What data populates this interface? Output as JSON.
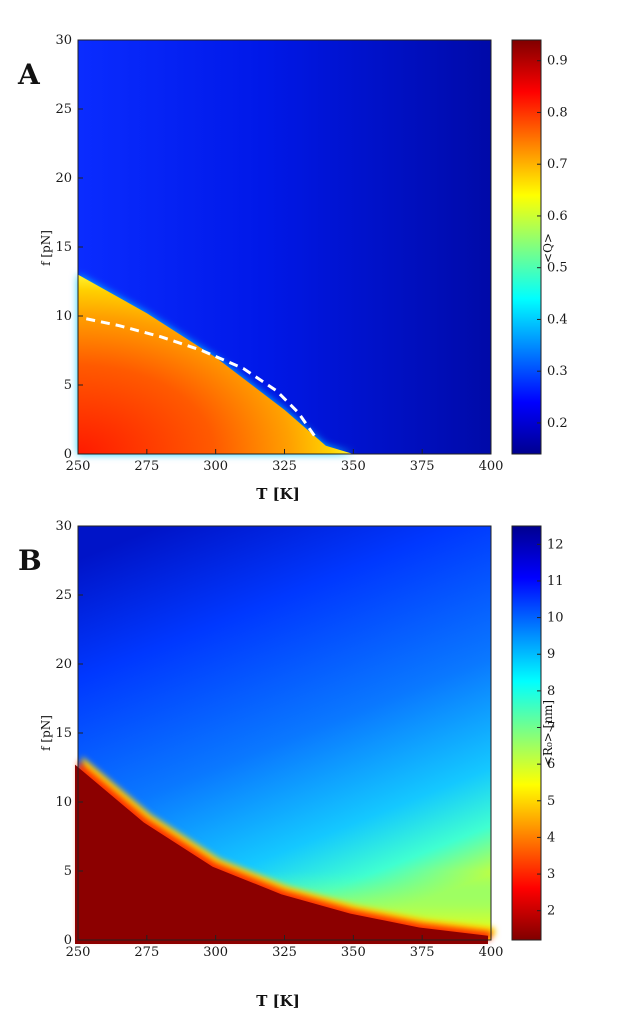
{
  "colors": {
    "jet": [
      "#00008f",
      "#0000ff",
      "#0080ff",
      "#00ffff",
      "#80ff80",
      "#ffff00",
      "#ff8000",
      "#ff0000",
      "#800000"
    ],
    "dashed_line": "#ffffff"
  },
  "chart_data": [
    {
      "panel_label": "A",
      "type": "heatmap",
      "xlabel": "T [K]",
      "ylabel": "f [pN]",
      "x_ticks": [
        "250",
        "275",
        "300",
        "325",
        "350",
        "375",
        "400"
      ],
      "y_ticks": [
        "0",
        "5",
        "10",
        "15",
        "20",
        "25",
        "30"
      ],
      "xlim": [
        250,
        400
      ],
      "ylim": [
        0,
        30
      ],
      "colorbar": {
        "label": "<Q>",
        "range": [
          0.14,
          0.94
        ],
        "reversed": false,
        "ticks": [
          "0.2",
          "0.3",
          "0.4",
          "0.5",
          "0.6",
          "0.7",
          "0.8",
          "0.9"
        ],
        "tick_values": [
          0.2,
          0.3,
          0.4,
          0.5,
          0.6,
          0.7,
          0.8,
          0.9
        ]
      },
      "transition_curve": {
        "description": "folded region below f_c(T)",
        "x": [
          250,
          275,
          300,
          325,
          340,
          350
        ],
        "y": [
          13,
          10.2,
          7,
          3.2,
          0.6,
          0
        ]
      },
      "dashed_line": {
        "x": [
          253,
          265,
          280,
          295,
          310,
          322,
          330,
          337
        ],
        "y": [
          9.8,
          9.3,
          8.5,
          7.5,
          6.2,
          4.6,
          3.0,
          1.0
        ]
      }
    },
    {
      "panel_label": "B",
      "type": "heatmap",
      "xlabel": "T [K]",
      "ylabel": "f [pN]",
      "x_ticks": [
        "250",
        "275",
        "300",
        "325",
        "350",
        "375",
        "400"
      ],
      "y_ticks": [
        "0",
        "5",
        "10",
        "15",
        "20",
        "25",
        "30"
      ],
      "xlim": [
        250,
        400
      ],
      "ylim": [
        0,
        30
      ],
      "colorbar": {
        "label": "<R₀> [nm]",
        "range": [
          1.2,
          12.5
        ],
        "reversed": true,
        "ticks": [
          "2",
          "3",
          "4",
          "5",
          "6",
          "7",
          "8",
          "9",
          "10",
          "11",
          "12"
        ],
        "tick_values": [
          2,
          3,
          4,
          5,
          6,
          7,
          8,
          9,
          10,
          11,
          12
        ]
      },
      "transition_curve": {
        "description": "collapsed region below f_c(T)",
        "x": [
          250,
          275,
          300,
          325,
          350,
          375,
          400
        ],
        "y": [
          13,
          8.8,
          5.6,
          3.6,
          2.2,
          1.2,
          0.6
        ]
      }
    }
  ]
}
